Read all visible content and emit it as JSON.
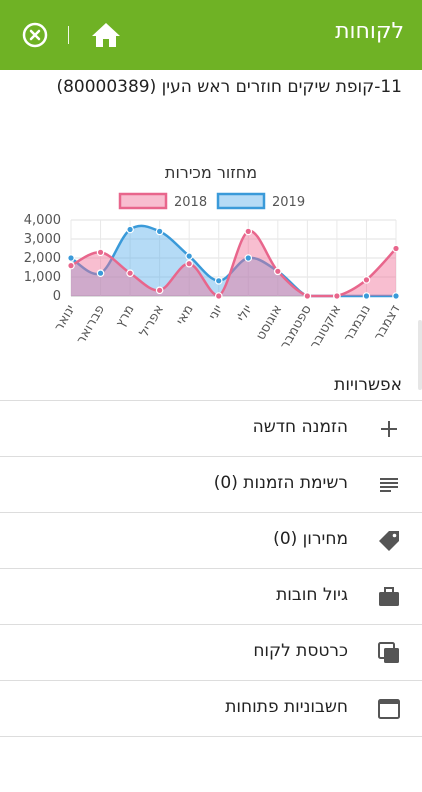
{
  "header": {
    "title": "לקוחות",
    "colors": {
      "bar": "#6fb225"
    }
  },
  "customer": {
    "title": "11-קופת שיקים חוזרים ראש העין (80000389)"
  },
  "chart_data": {
    "type": "area",
    "title": "מחזור מכירות",
    "categories": [
      "ינואר",
      "פברואר",
      "מרץ",
      "אפריל",
      "מאי",
      "יוני",
      "יולי",
      "אוגוסט",
      "ספטמבר",
      "אוקטובר",
      "נובמבר",
      "דצמבר"
    ],
    "ylim": [
      0,
      4000
    ],
    "yticks": [
      "0",
      "1,000",
      "2,000",
      "3,000",
      "4,000"
    ],
    "grid": true,
    "legend_position": "top",
    "series": [
      {
        "name": "2018",
        "color": "#e8668c",
        "fill": "rgba(240,110,150,0.45)",
        "values": [
          1600,
          2300,
          1200,
          300,
          1700,
          0,
          3400,
          1300,
          0,
          0,
          850,
          2500
        ]
      },
      {
        "name": "2019",
        "color": "#3a9ad9",
        "fill": "rgba(90,175,235,0.45)",
        "values": [
          2000,
          1200,
          3500,
          3400,
          2100,
          800,
          2000,
          1300,
          0,
          0,
          0,
          0
        ]
      }
    ]
  },
  "options": {
    "heading": "אפשרויות",
    "items": [
      {
        "label": "הזמנה חדשה",
        "icon": "plus-icon"
      },
      {
        "label": "רשימת הזמנות (0)",
        "icon": "list-icon"
      },
      {
        "label": "מחירון (0)",
        "icon": "tag-icon"
      },
      {
        "label": "גיול חובות",
        "icon": "briefcase-icon"
      },
      {
        "label": "כרטסת לקוח",
        "icon": "cards-icon"
      },
      {
        "label": "חשבוניות פתוחות",
        "icon": "window-icon"
      }
    ]
  }
}
